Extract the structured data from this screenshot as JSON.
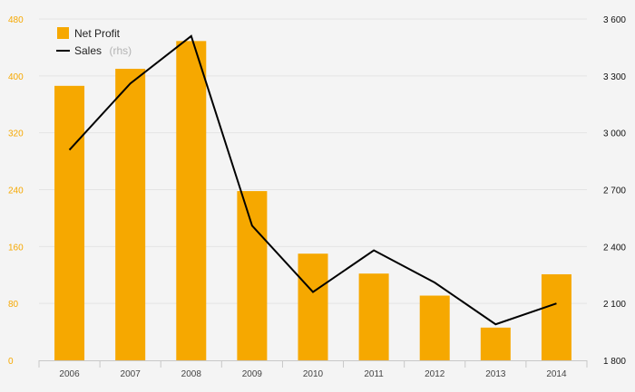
{
  "chart_data": {
    "type": "bar",
    "categories": [
      "2006",
      "2007",
      "2008",
      "2009",
      "2010",
      "2011",
      "2012",
      "2013",
      "2014"
    ],
    "series": [
      {
        "name": "Net Profit",
        "type": "bar",
        "axis": "left",
        "color": "#f6a800",
        "values": [
          386,
          410,
          449,
          238,
          150,
          122,
          91,
          46,
          121
        ]
      },
      {
        "name": "Sales",
        "name_suffix": "(rhs)",
        "type": "line",
        "axis": "right",
        "color": "#000000",
        "values": [
          2910,
          3260,
          3510,
          2510,
          2160,
          2380,
          2210,
          1990,
          2100
        ]
      }
    ],
    "left_axis": {
      "ticks": [
        "0",
        "80",
        "160",
        "240",
        "320",
        "400",
        "480"
      ],
      "ylim": [
        0,
        480
      ]
    },
    "right_axis": {
      "ticks": [
        "1 800",
        "2 100",
        "2 400",
        "2 700",
        "3 000",
        "3 300",
        "3 600"
      ],
      "ylim": [
        1800,
        3600
      ]
    },
    "grid": true,
    "legend_position": "top-left",
    "title": "",
    "xlabel": "",
    "ylabel": ""
  }
}
